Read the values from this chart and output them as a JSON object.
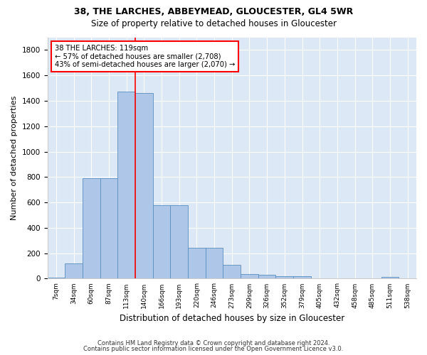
{
  "title1": "38, THE LARCHES, ABBEYMEAD, GLOUCESTER, GL4 5WR",
  "title2": "Size of property relative to detached houses in Gloucester",
  "xlabel": "Distribution of detached houses by size in Gloucester",
  "ylabel": "Number of detached properties",
  "categories": [
    "7sqm",
    "34sqm",
    "60sqm",
    "87sqm",
    "113sqm",
    "140sqm",
    "166sqm",
    "193sqm",
    "220sqm",
    "246sqm",
    "273sqm",
    "299sqm",
    "326sqm",
    "352sqm",
    "379sqm",
    "405sqm",
    "432sqm",
    "458sqm",
    "485sqm",
    "511sqm",
    "538sqm"
  ],
  "values": [
    10,
    120,
    790,
    790,
    1470,
    1460,
    580,
    580,
    245,
    245,
    110,
    35,
    30,
    20,
    20,
    5,
    5,
    0,
    0,
    15,
    0
  ],
  "bar_color": "#aec6e8",
  "bar_edge_color": "#5a8fc0",
  "red_line_x": 4.5,
  "annotation_line1": "38 THE LARCHES: 119sqm",
  "annotation_line2": "← 57% of detached houses are smaller (2,708)",
  "annotation_line3": "43% of semi-detached houses are larger (2,070) →",
  "annotation_box_color": "white",
  "annotation_box_edge_color": "red",
  "footer1": "Contains HM Land Registry data © Crown copyright and database right 2024.",
  "footer2": "Contains public sector information licensed under the Open Government Licence v3.0.",
  "ylim": [
    0,
    1900
  ],
  "yticks": [
    0,
    200,
    400,
    600,
    800,
    1000,
    1200,
    1400,
    1600,
    1800
  ],
  "bg_color": "#dce8f5",
  "fig_bg_color": "#ffffff",
  "title1_fontsize": 9,
  "title2_fontsize": 8.5,
  "ylabel_fontsize": 8,
  "xlabel_fontsize": 8.5
}
